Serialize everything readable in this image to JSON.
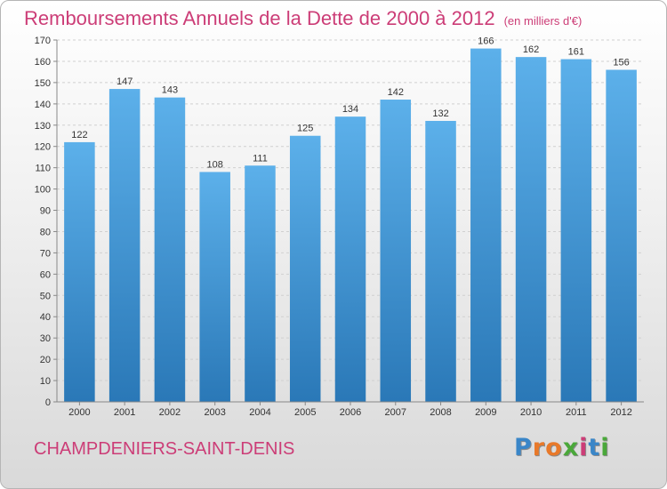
{
  "title": "Remboursements Annuels de la Dette de 2000 à 2012",
  "unit": "(en milliers d'€)",
  "city": "CHAMPDENIERS-SAINT-DENIS",
  "logo": {
    "text": "Proxiti",
    "colors": [
      "#3a86c8",
      "#e8792a",
      "#e8792a",
      "#4aa83a",
      "#cc3d77",
      "#3a86c8",
      "#4aa83a"
    ]
  },
  "colors": {
    "accent": "#cc3d77",
    "bar_top": "#5cb0ea",
    "bar_bottom": "#2a78b7"
  },
  "chart_data": {
    "type": "bar",
    "categories": [
      "2000",
      "2001",
      "2002",
      "2003",
      "2004",
      "2005",
      "2006",
      "2007",
      "2008",
      "2009",
      "2010",
      "2011",
      "2012"
    ],
    "values": [
      122,
      147,
      143,
      108,
      111,
      125,
      134,
      142,
      132,
      166,
      162,
      161,
      156
    ],
    "title": "Remboursements Annuels de la Dette de 2000 à 2012",
    "xlabel": "",
    "ylabel": "",
    "ylim": [
      0,
      170
    ],
    "ytick_step": 10,
    "grid": true,
    "data_labels": true
  }
}
